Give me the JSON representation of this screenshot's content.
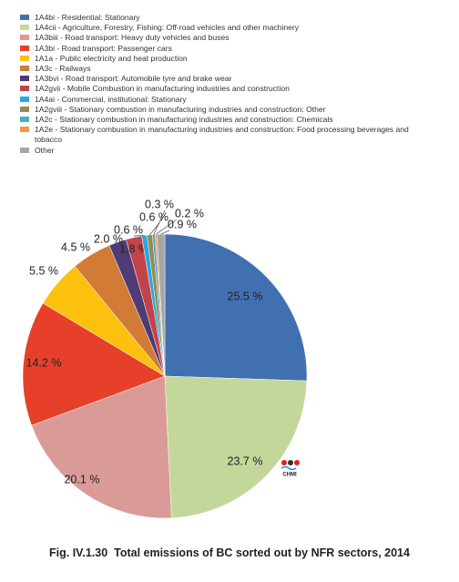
{
  "chart_data": {
    "type": "pie",
    "title": "Fig. IV.1.30  Total emissions of BC sorted out by NFR sectors, 2014",
    "logo": "CHMI",
    "categories": [
      "1A4bi - Residential: Stationary",
      "1A4cii - Agriculture, Forestry, Fishing: Off-road vehicles and other machinery",
      "1A3biii - Road transport: Heavy duty vehicles and buses",
      "1A3bi - Road transport: Passenger cars",
      "1A1a - Public electricity and heat production",
      "1A3c - Railways",
      "1A3bvi - Road transport: Automobile tyre and brake wear",
      "1A2gvii - Mobile Combustion in manufacturing industries and construction",
      "1A4ai - Commercial, institutional: Stationary",
      "1A2gviii - Stationary combustion in manufacturing industries and construction: Other",
      "1A2c - Stationary combustion in manufacturing industries and construction: Chemicals",
      "1A2e - Stationary combustion in manufacturing industries and construction: Food processing beverages and tobacco",
      "Other"
    ],
    "values": [
      25.5,
      23.7,
      20.1,
      14.2,
      5.5,
      4.5,
      2.0,
      1.8,
      0.6,
      0.6,
      0.3,
      0.2,
      0.9
    ],
    "value_labels": [
      "25.5 %",
      "23.7 %",
      "20.1 %",
      "14.2 %",
      "5.5 %",
      "4.5 %",
      "2.0 %",
      "1.8 %",
      "0.6 %",
      "0.6 %",
      "0.3 %",
      "0.2 %",
      "0.9 %"
    ],
    "colors": [
      "#4170b1",
      "#c4d79b",
      "#da9a98",
      "#e6402b",
      "#fcc10f",
      "#d27b36",
      "#4f3c75",
      "#c3434b",
      "#2ba7e0",
      "#958b55",
      "#4bacc6",
      "#f79646",
      "#a6a6a6"
    ]
  }
}
